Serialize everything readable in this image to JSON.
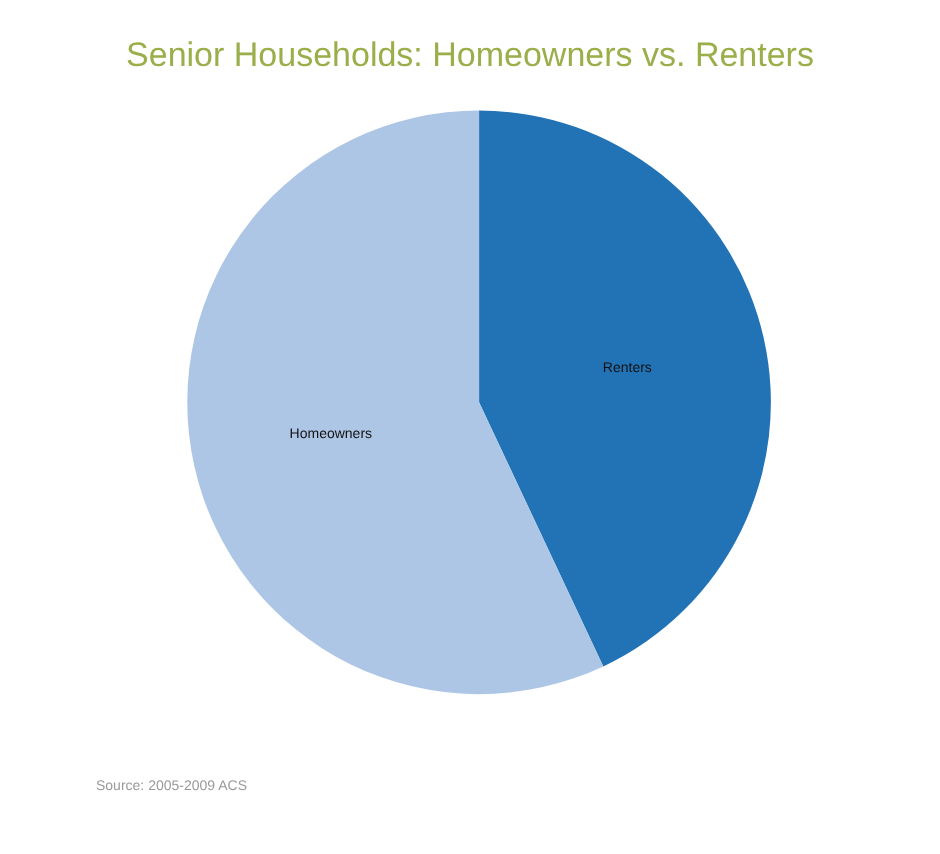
{
  "chart_data": {
    "type": "pie",
    "title": "Senior Households: Homeowners vs. Renters",
    "categories": [
      "Renters",
      "Homeowners"
    ],
    "values": [
      43,
      57
    ],
    "colors": [
      "#2273b6",
      "#aec6e6"
    ],
    "annotations": [
      "Source: 2005-2009 ACS"
    ],
    "legend": false
  }
}
